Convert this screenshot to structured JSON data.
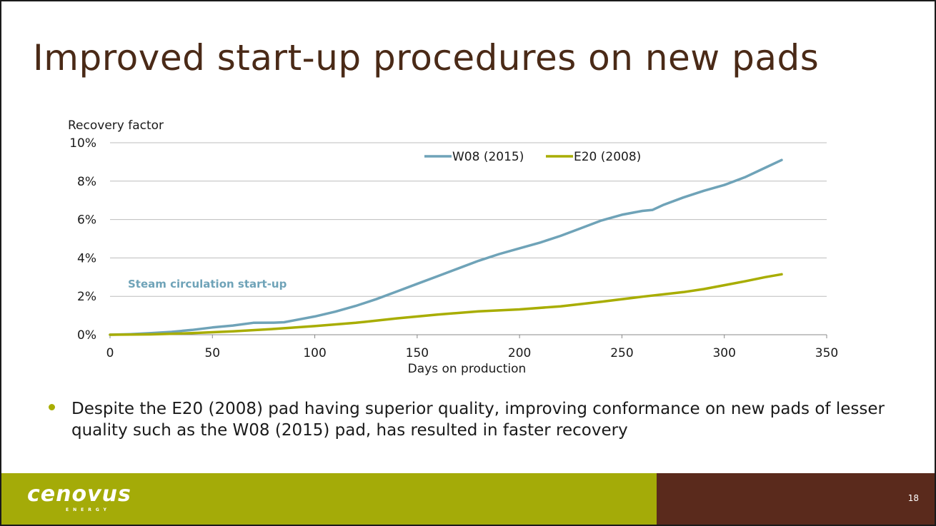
{
  "slide": {
    "title": "Improved start-up procedures on new pads",
    "bullet": "Despite the E20 (2008) pad having superior quality, improving conformance on new pads of lesser quality such as the W08 (2015) pad, has resulted in faster recovery",
    "page_number": "18",
    "logo": {
      "name": "cenovus",
      "tagline": "ENERGY"
    },
    "colors": {
      "title": "#4a2a17",
      "bullet": "#a8ad00",
      "footer_left": "#a4ab08",
      "footer_right": "#5a2a1c"
    }
  },
  "chart_data": {
    "type": "line",
    "title": "",
    "ylabel": "Recovery factor",
    "xlabel": "Days on production",
    "xlim": [
      0,
      350
    ],
    "ylim": [
      0,
      10
    ],
    "x_ticks": [
      0,
      50,
      100,
      150,
      200,
      250,
      300,
      350
    ],
    "y_ticks": [
      0,
      2,
      4,
      6,
      8,
      10
    ],
    "y_tick_labels": [
      "0%",
      "2%",
      "4%",
      "6%",
      "8%",
      "10%"
    ],
    "grid": true,
    "legend": "top-center",
    "annotation": {
      "text": "Steam circulation start-up",
      "x": 9,
      "y": 2.5,
      "color": "#6fa3b8"
    },
    "series": [
      {
        "name": "W08 (2015)",
        "color": "#6fa3b8",
        "x": [
          0,
          10,
          20,
          30,
          40,
          50,
          60,
          70,
          80,
          85,
          90,
          100,
          110,
          120,
          130,
          140,
          150,
          160,
          170,
          180,
          190,
          200,
          210,
          220,
          230,
          240,
          250,
          260,
          265,
          270,
          280,
          290,
          300,
          310,
          320,
          328
        ],
        "y": [
          0,
          0.03,
          0.08,
          0.15,
          0.25,
          0.38,
          0.48,
          0.62,
          0.63,
          0.65,
          0.75,
          0.95,
          1.2,
          1.5,
          1.85,
          2.25,
          2.65,
          3.05,
          3.45,
          3.85,
          4.2,
          4.5,
          4.8,
          5.15,
          5.55,
          5.95,
          6.25,
          6.45,
          6.5,
          6.75,
          7.15,
          7.5,
          7.8,
          8.2,
          8.7,
          9.1
        ]
      },
      {
        "name": "E20 (2008)",
        "color": "#a8ad00",
        "x": [
          0,
          20,
          40,
          60,
          80,
          100,
          120,
          140,
          160,
          180,
          200,
          220,
          240,
          260,
          280,
          290,
          300,
          310,
          320,
          328
        ],
        "y": [
          0,
          0.02,
          0.08,
          0.18,
          0.3,
          0.45,
          0.62,
          0.85,
          1.05,
          1.22,
          1.32,
          1.48,
          1.72,
          1.98,
          2.22,
          2.38,
          2.58,
          2.78,
          3.0,
          3.15
        ]
      }
    ]
  }
}
